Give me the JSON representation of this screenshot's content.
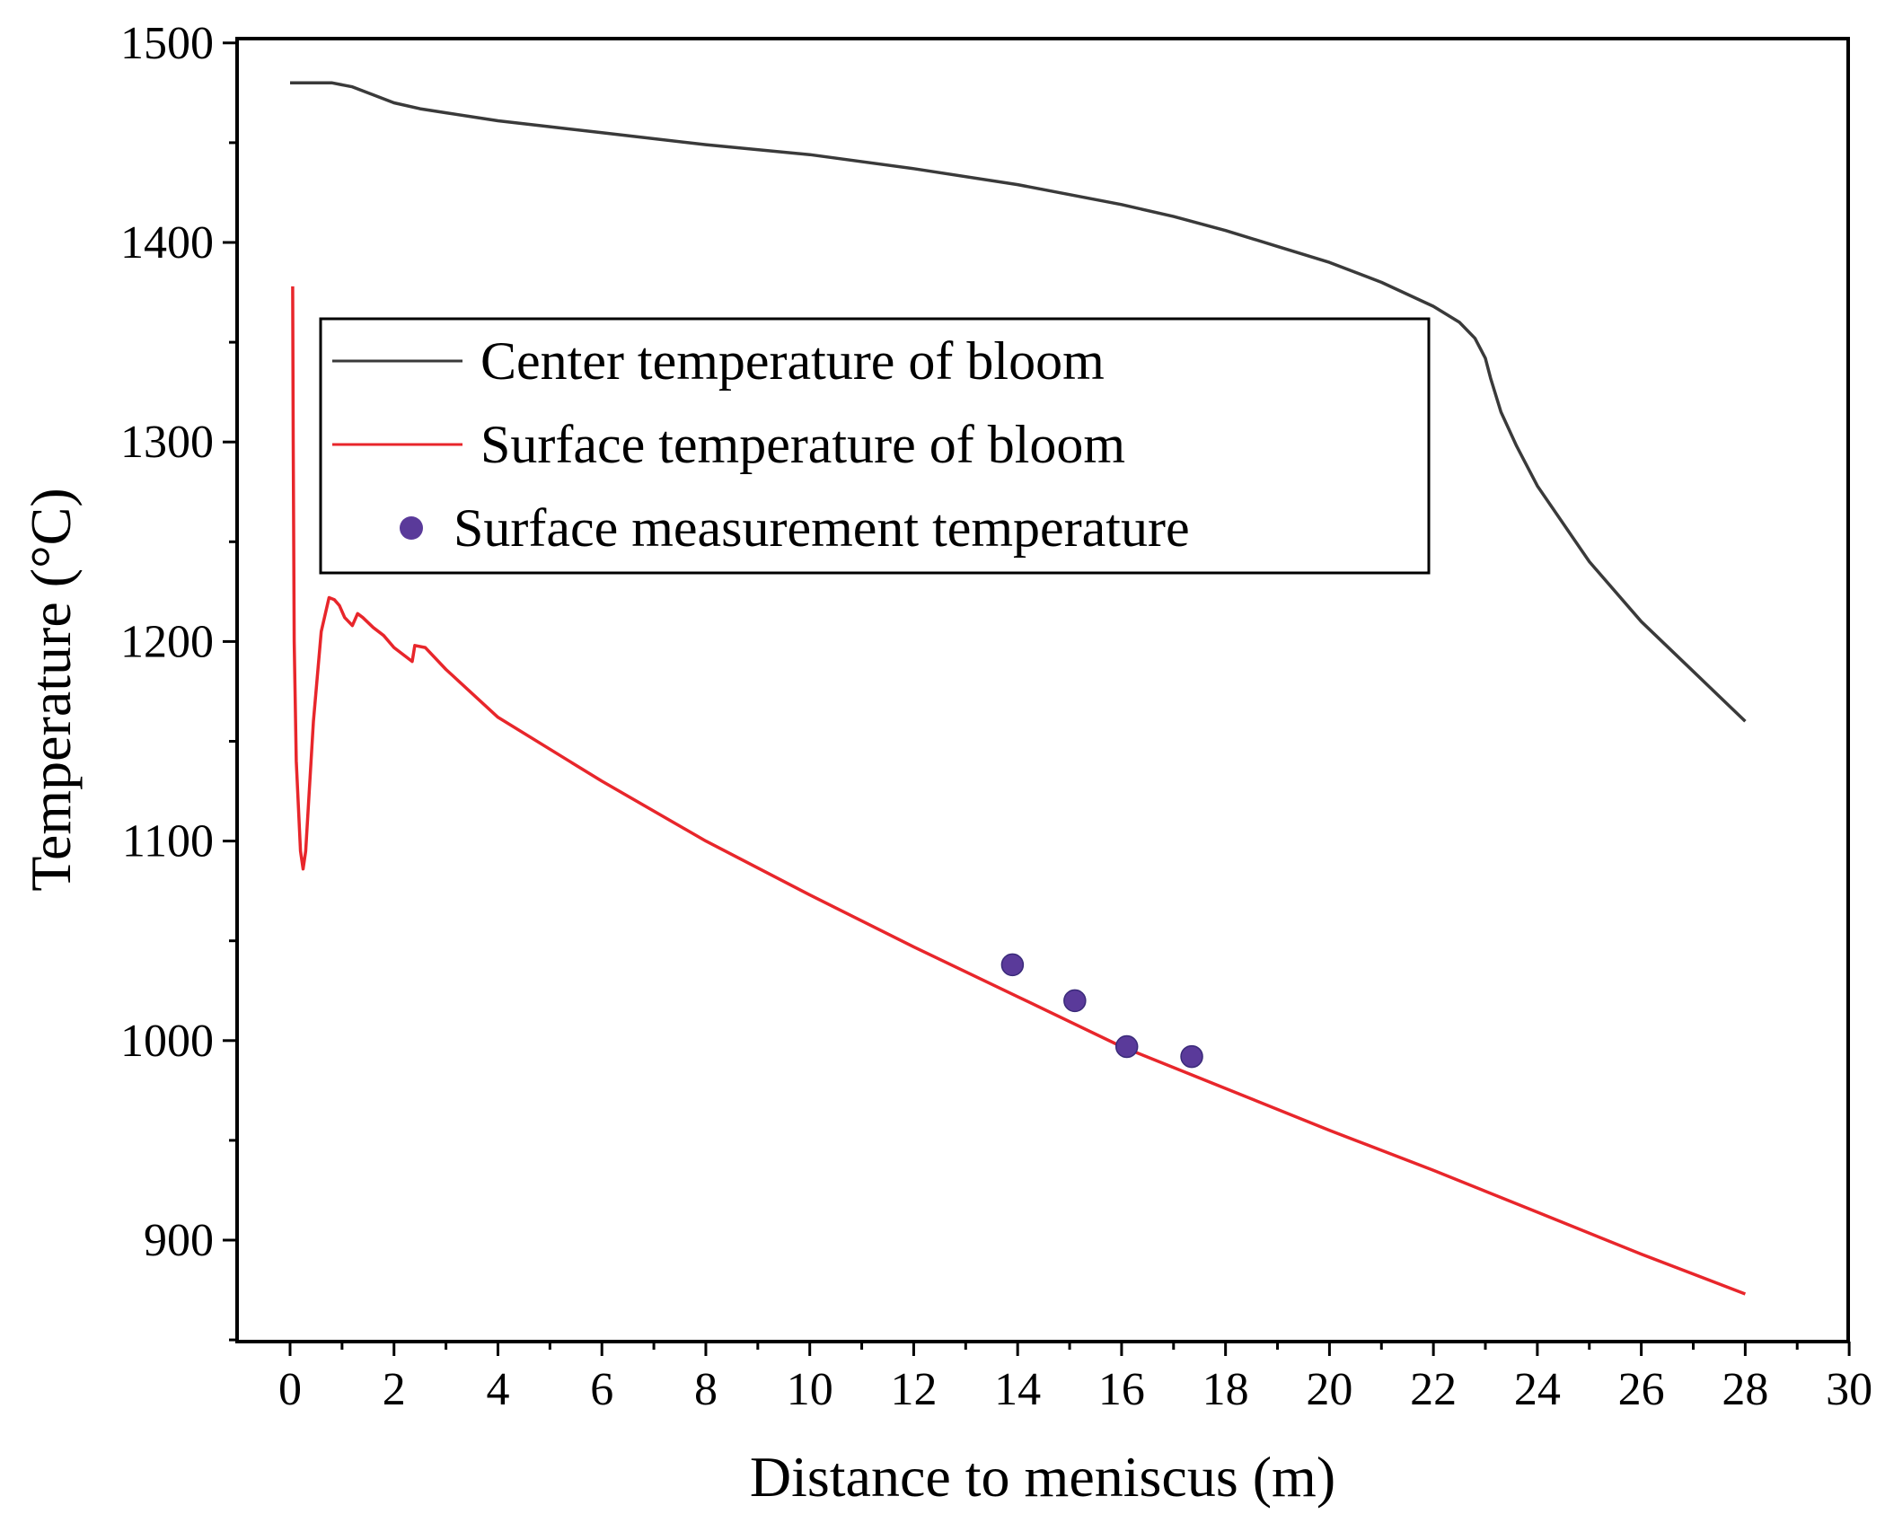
{
  "chart_data": {
    "type": "line",
    "title": "",
    "xlabel": "Distance to meniscus (m)",
    "ylabel": "Temperature (°C)",
    "xlim": [
      -1,
      30
    ],
    "ylim": [
      850,
      1500
    ],
    "xticks": [
      0,
      2,
      4,
      6,
      8,
      10,
      12,
      14,
      16,
      18,
      20,
      22,
      24,
      26,
      28,
      30
    ],
    "yticks": [
      900,
      1000,
      1100,
      1200,
      1300,
      1400,
      1500
    ],
    "xtick_labels": [
      "0",
      "2",
      "4",
      "6",
      "8",
      "10",
      "12",
      "14",
      "16",
      "18",
      "20",
      "22",
      "24",
      "26",
      "28",
      "30"
    ],
    "ytick_labels": [
      "900",
      "1000",
      "1100",
      "1200",
      "1300",
      "1400",
      "1500"
    ],
    "grid": false,
    "legend_position": "upper-center",
    "series": [
      {
        "name": "Center temperature of bloom",
        "kind": "line",
        "color": "#3a3a3a",
        "x": [
          0,
          0.4,
          0.8,
          1.2,
          1.6,
          2.0,
          2.5,
          3.0,
          4.0,
          5.0,
          6.0,
          8.0,
          10.0,
          12.0,
          14.0,
          16.0,
          17.0,
          18.0,
          19.0,
          20.0,
          21.0,
          22.0,
          22.5,
          22.8,
          23.0,
          23.1,
          23.3,
          23.6,
          24.0,
          25.0,
          26.0,
          27.0,
          28.0
        ],
        "y": [
          1480,
          1480,
          1480,
          1478,
          1474,
          1470,
          1467,
          1465,
          1461,
          1458,
          1455,
          1449,
          1444,
          1437,
          1429,
          1419,
          1413,
          1406,
          1398,
          1390,
          1380,
          1368,
          1360,
          1352,
          1342,
          1332,
          1315,
          1298,
          1278,
          1240,
          1210,
          1185,
          1160
        ]
      },
      {
        "name": "Surface temperature of bloom",
        "kind": "line",
        "color": "#e8262b",
        "x": [
          0.05,
          0.06,
          0.08,
          0.12,
          0.2,
          0.25,
          0.3,
          0.45,
          0.6,
          0.75,
          0.85,
          0.95,
          1.05,
          1.2,
          1.3,
          1.4,
          1.6,
          1.8,
          2.0,
          2.2,
          2.35,
          2.4,
          2.6,
          3.0,
          4.0,
          6.0,
          8.0,
          10.0,
          12.0,
          14.0,
          16.0,
          18.0,
          20.0,
          22.0,
          24.0,
          26.0,
          28.0
        ],
        "y": [
          1378,
          1300,
          1200,
          1140,
          1095,
          1086,
          1095,
          1160,
          1205,
          1222,
          1221,
          1218,
          1212,
          1208,
          1214,
          1212,
          1207,
          1203,
          1197,
          1193,
          1190,
          1198,
          1197,
          1186,
          1162,
          1130,
          1100,
          1073,
          1047,
          1022,
          997,
          976,
          955,
          935,
          914,
          893,
          873
        ]
      },
      {
        "name": "Surface measurement temperature",
        "kind": "scatter",
        "color": "#5a3a9a",
        "x": [
          13.9,
          15.1,
          16.1,
          17.35
        ],
        "y": [
          1038,
          1020,
          997,
          992
        ]
      }
    ]
  }
}
